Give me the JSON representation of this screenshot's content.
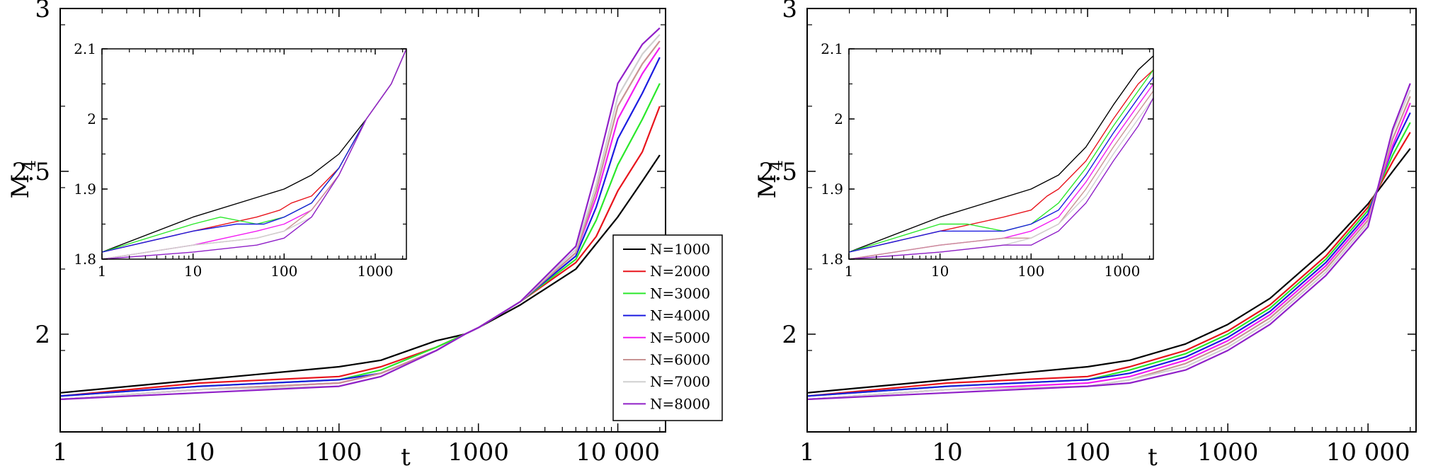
{
  "chart_data": [
    {
      "type": "line",
      "panel": "left",
      "xlabel": "t",
      "ylabel": "M",
      "ylabel_sub": "4",
      "xscale": "log",
      "xlim": [
        1,
        22000
      ],
      "ylim": [
        1.7,
        3.0
      ],
      "xticks": [
        1,
        10,
        100,
        1000,
        10000
      ],
      "xtick_labels": [
        "1",
        "10",
        "100",
        "1000",
        "10 000"
      ],
      "yticks": [
        2,
        2.5,
        3
      ],
      "ytick_labels": [
        "2",
        "2.5",
        "3"
      ],
      "legend": "center-right",
      "series": [
        {
          "name": "N=1000",
          "color": "#000000",
          "x": [
            1,
            10,
            100,
            200,
            500,
            800,
            1000,
            2000,
            5000,
            10000,
            15000,
            20000
          ],
          "y": [
            1.82,
            1.86,
            1.9,
            1.92,
            1.98,
            2.0,
            2.02,
            2.09,
            2.2,
            2.36,
            2.47,
            2.55
          ]
        },
        {
          "name": "N=2000",
          "color": "#e8141c",
          "x": [
            1,
            10,
            100,
            200,
            500,
            800,
            1000,
            2000,
            5000,
            7000,
            10000,
            15000,
            20000
          ],
          "y": [
            1.81,
            1.85,
            1.87,
            1.9,
            1.96,
            2.0,
            2.02,
            2.1,
            2.22,
            2.3,
            2.44,
            2.56,
            2.7
          ]
        },
        {
          "name": "N=3000",
          "color": "#2be82b",
          "x": [
            1,
            10,
            100,
            200,
            500,
            800,
            1000,
            2000,
            5000,
            7000,
            10000,
            15000,
            20000
          ],
          "y": [
            1.81,
            1.84,
            1.86,
            1.89,
            1.96,
            2.0,
            2.02,
            2.1,
            2.23,
            2.35,
            2.52,
            2.66,
            2.77
          ]
        },
        {
          "name": "N=4000",
          "color": "#1c1ce0",
          "x": [
            1,
            10,
            100,
            200,
            500,
            800,
            1000,
            2000,
            5000,
            7000,
            10000,
            15000,
            20000
          ],
          "y": [
            1.81,
            1.84,
            1.86,
            1.88,
            1.95,
            2.0,
            2.02,
            2.1,
            2.24,
            2.39,
            2.6,
            2.74,
            2.85
          ]
        },
        {
          "name": "N=5000",
          "color": "#f21cf2",
          "x": [
            1,
            10,
            100,
            200,
            500,
            800,
            1000,
            2000,
            5000,
            7000,
            10000,
            15000,
            20000
          ],
          "y": [
            1.8,
            1.83,
            1.85,
            1.88,
            1.95,
            2.0,
            2.02,
            2.1,
            2.25,
            2.42,
            2.66,
            2.8,
            2.88
          ]
        },
        {
          "name": "N=6000",
          "color": "#c89494",
          "x": [
            1,
            10,
            100,
            200,
            500,
            800,
            1000,
            2000,
            5000,
            7000,
            10000,
            15000,
            20000
          ],
          "y": [
            1.8,
            1.83,
            1.85,
            1.88,
            1.95,
            2.0,
            2.02,
            2.1,
            2.25,
            2.44,
            2.7,
            2.83,
            2.9
          ]
        },
        {
          "name": "N=7000",
          "color": "#d0d0d0",
          "x": [
            1,
            10,
            100,
            200,
            500,
            800,
            1000,
            2000,
            5000,
            7000,
            10000,
            15000,
            20000
          ],
          "y": [
            1.8,
            1.83,
            1.84,
            1.87,
            1.95,
            2.0,
            2.02,
            2.1,
            2.26,
            2.46,
            2.73,
            2.86,
            2.92
          ]
        },
        {
          "name": "N=8000",
          "color": "#9020c8",
          "x": [
            1,
            10,
            100,
            200,
            500,
            800,
            1000,
            2000,
            5000,
            7000,
            10000,
            15000,
            20000
          ],
          "y": [
            1.8,
            1.82,
            1.84,
            1.87,
            1.95,
            2.0,
            2.02,
            2.1,
            2.27,
            2.5,
            2.77,
            2.89,
            2.94
          ]
        }
      ],
      "inset": {
        "xscale": "log",
        "xlim": [
          1,
          2200
        ],
        "ylim": [
          1.8,
          2.1
        ],
        "xticks": [
          1,
          10,
          100,
          1000
        ],
        "xtick_labels": [
          "1",
          "10",
          "100",
          "1000"
        ],
        "yticks": [
          1.8,
          1.9,
          2.0,
          2.1
        ],
        "ytick_labels": [
          "1.8",
          "1.9",
          "2",
          "2.1"
        ],
        "series": [
          {
            "name": "N=1000",
            "color": "#000000",
            "x": [
              1,
              10,
              100,
              200,
              400,
              800,
              1500,
              2200
            ],
            "y": [
              1.81,
              1.86,
              1.9,
              1.92,
              1.95,
              2.0,
              2.05,
              2.1
            ]
          },
          {
            "name": "N=2000",
            "color": "#e8141c",
            "x": [
              1,
              10,
              50,
              90,
              120,
              200,
              400,
              800,
              1500,
              2200
            ],
            "y": [
              1.81,
              1.84,
              1.86,
              1.87,
              1.88,
              1.89,
              1.93,
              2.0,
              2.05,
              2.1
            ]
          },
          {
            "name": "N=3000",
            "color": "#2be82b",
            "x": [
              1,
              10,
              20,
              50,
              100,
              200,
              400,
              800,
              1500,
              2200
            ],
            "y": [
              1.81,
              1.85,
              1.86,
              1.85,
              1.86,
              1.88,
              1.93,
              2.0,
              2.05,
              2.1
            ]
          },
          {
            "name": "N=4000",
            "color": "#1c1ce0",
            "x": [
              1,
              10,
              30,
              60,
              100,
              200,
              400,
              800,
              1500,
              2200
            ],
            "y": [
              1.81,
              1.84,
              1.85,
              1.85,
              1.86,
              1.88,
              1.93,
              2.0,
              2.05,
              2.1
            ]
          },
          {
            "name": "N=5000",
            "color": "#f21cf2",
            "x": [
              1,
              10,
              50,
              100,
              200,
              400,
              800,
              1500,
              2200
            ],
            "y": [
              1.8,
              1.82,
              1.84,
              1.85,
              1.87,
              1.92,
              2.0,
              2.05,
              2.1
            ]
          },
          {
            "name": "N=6000",
            "color": "#c89494",
            "x": [
              1,
              10,
              50,
              100,
              200,
              400,
              800,
              1500,
              2200
            ],
            "y": [
              1.8,
              1.82,
              1.83,
              1.84,
              1.87,
              1.92,
              2.0,
              2.05,
              2.1
            ]
          },
          {
            "name": "N=7000",
            "color": "#d0d0d0",
            "x": [
              1,
              10,
              50,
              100,
              200,
              400,
              800,
              1500,
              2200
            ],
            "y": [
              1.8,
              1.82,
              1.83,
              1.84,
              1.86,
              1.92,
              2.0,
              2.05,
              2.1
            ]
          },
          {
            "name": "N=8000",
            "color": "#9020c8",
            "x": [
              1,
              10,
              50,
              100,
              200,
              400,
              800,
              1500,
              2200
            ],
            "y": [
              1.8,
              1.81,
              1.82,
              1.83,
              1.86,
              1.92,
              2.0,
              2.05,
              2.1
            ]
          }
        ]
      }
    },
    {
      "type": "line",
      "panel": "right",
      "xlabel": "t",
      "ylabel": "M",
      "ylabel_sub": "4",
      "xscale": "log",
      "xlim": [
        1,
        22000
      ],
      "ylim": [
        1.7,
        3.0
      ],
      "xticks": [
        1,
        10,
        100,
        1000,
        10000
      ],
      "xtick_labels": [
        "1",
        "10",
        "100",
        "1000",
        "10 000"
      ],
      "yticks": [
        2,
        2.5,
        3
      ],
      "ytick_labels": [
        "2",
        "2.5",
        "3"
      ],
      "series": [
        {
          "name": "N=1000",
          "color": "#000000",
          "x": [
            1,
            10,
            100,
            200,
            500,
            1000,
            2000,
            5000,
            10000,
            15000,
            20000
          ],
          "y": [
            1.82,
            1.86,
            1.9,
            1.92,
            1.97,
            2.03,
            2.11,
            2.26,
            2.4,
            2.5,
            2.57
          ]
        },
        {
          "name": "N=2000",
          "color": "#e8141c",
          "x": [
            1,
            10,
            100,
            200,
            500,
            1000,
            2000,
            5000,
            10000,
            15000,
            20000
          ],
          "y": [
            1.81,
            1.85,
            1.87,
            1.9,
            1.95,
            2.01,
            2.09,
            2.24,
            2.39,
            2.53,
            2.62
          ]
        },
        {
          "name": "N=3000",
          "color": "#2be82b",
          "x": [
            1,
            10,
            100,
            200,
            500,
            1000,
            2000,
            5000,
            10000,
            15000,
            20000
          ],
          "y": [
            1.81,
            1.84,
            1.86,
            1.89,
            1.94,
            2.0,
            2.08,
            2.23,
            2.38,
            2.55,
            2.65
          ]
        },
        {
          "name": "N=4000",
          "color": "#1c1ce0",
          "x": [
            1,
            10,
            100,
            200,
            500,
            1000,
            2000,
            5000,
            10000,
            15000,
            20000
          ],
          "y": [
            1.81,
            1.84,
            1.86,
            1.88,
            1.93,
            1.99,
            2.07,
            2.22,
            2.37,
            2.57,
            2.68
          ]
        },
        {
          "name": "N=5000",
          "color": "#f21cf2",
          "x": [
            1,
            10,
            100,
            200,
            500,
            1000,
            2000,
            5000,
            10000,
            15000,
            20000
          ],
          "y": [
            1.8,
            1.83,
            1.85,
            1.87,
            1.92,
            1.98,
            2.06,
            2.21,
            2.36,
            2.58,
            2.71
          ]
        },
        {
          "name": "N=6000",
          "color": "#c89494",
          "x": [
            1,
            10,
            100,
            200,
            500,
            1000,
            2000,
            5000,
            10000,
            15000,
            20000
          ],
          "y": [
            1.8,
            1.83,
            1.84,
            1.86,
            1.91,
            1.97,
            2.05,
            2.2,
            2.35,
            2.6,
            2.73
          ]
        },
        {
          "name": "N=7000",
          "color": "#d0d0d0",
          "x": [
            1,
            10,
            100,
            200,
            500,
            1000,
            2000,
            5000,
            10000,
            15000,
            20000
          ],
          "y": [
            1.8,
            1.83,
            1.84,
            1.86,
            1.9,
            1.96,
            2.04,
            2.19,
            2.34,
            2.62,
            2.75
          ]
        },
        {
          "name": "N=8000",
          "color": "#9020c8",
          "x": [
            1,
            10,
            100,
            200,
            500,
            1000,
            2000,
            5000,
            10000,
            15000,
            20000
          ],
          "y": [
            1.8,
            1.82,
            1.84,
            1.85,
            1.89,
            1.95,
            2.03,
            2.18,
            2.33,
            2.63,
            2.77
          ]
        }
      ],
      "inset": {
        "xscale": "log",
        "xlim": [
          1,
          2200
        ],
        "ylim": [
          1.8,
          2.1
        ],
        "xticks": [
          1,
          10,
          100,
          1000
        ],
        "xtick_labels": [
          "1",
          "10",
          "100",
          "1000"
        ],
        "yticks": [
          1.8,
          1.9,
          2.0,
          2.1
        ],
        "ytick_labels": [
          "1.8",
          "1.9",
          "2",
          "2.1"
        ],
        "series": [
          {
            "name": "N=1000",
            "color": "#000000",
            "x": [
              1,
              10,
              100,
              200,
              400,
              800,
              1500,
              2200
            ],
            "y": [
              1.81,
              1.86,
              1.9,
              1.92,
              1.96,
              2.02,
              2.07,
              2.09
            ]
          },
          {
            "name": "N=2000",
            "color": "#e8141c",
            "x": [
              1,
              10,
              50,
              100,
              150,
              200,
              400,
              800,
              1500,
              2200
            ],
            "y": [
              1.81,
              1.84,
              1.86,
              1.87,
              1.89,
              1.9,
              1.94,
              2.0,
              2.05,
              2.07
            ]
          },
          {
            "name": "N=3000",
            "color": "#2be82b",
            "x": [
              1,
              10,
              20,
              50,
              100,
              200,
              400,
              800,
              1500,
              2200
            ],
            "y": [
              1.81,
              1.85,
              1.85,
              1.84,
              1.85,
              1.88,
              1.93,
              1.99,
              2.04,
              2.07
            ]
          },
          {
            "name": "N=4000",
            "color": "#1c1ce0",
            "x": [
              1,
              10,
              50,
              100,
              200,
              400,
              800,
              1500,
              2200
            ],
            "y": [
              1.81,
              1.84,
              1.84,
              1.85,
              1.87,
              1.92,
              1.98,
              2.03,
              2.06
            ]
          },
          {
            "name": "N=5000",
            "color": "#f21cf2",
            "x": [
              1,
              10,
              50,
              100,
              200,
              400,
              800,
              1500,
              2200
            ],
            "y": [
              1.8,
              1.82,
              1.83,
              1.84,
              1.86,
              1.91,
              1.97,
              2.02,
              2.05
            ]
          },
          {
            "name": "N=6000",
            "color": "#c89494",
            "x": [
              1,
              10,
              50,
              100,
              200,
              400,
              800,
              1500,
              2200
            ],
            "y": [
              1.8,
              1.82,
              1.83,
              1.83,
              1.85,
              1.9,
              1.96,
              2.01,
              2.04
            ]
          },
          {
            "name": "N=7000",
            "color": "#d0d0d0",
            "x": [
              1,
              10,
              50,
              100,
              200,
              400,
              800,
              1500,
              2200
            ],
            "y": [
              1.8,
              1.81,
              1.82,
              1.83,
              1.85,
              1.89,
              1.95,
              2.0,
              2.03
            ]
          },
          {
            "name": "N=8000",
            "color": "#9020c8",
            "x": [
              1,
              10,
              50,
              100,
              200,
              400,
              800,
              1500,
              2200
            ],
            "y": [
              1.8,
              1.81,
              1.82,
              1.82,
              1.84,
              1.88,
              1.94,
              1.99,
              2.03
            ]
          }
        ]
      }
    }
  ]
}
